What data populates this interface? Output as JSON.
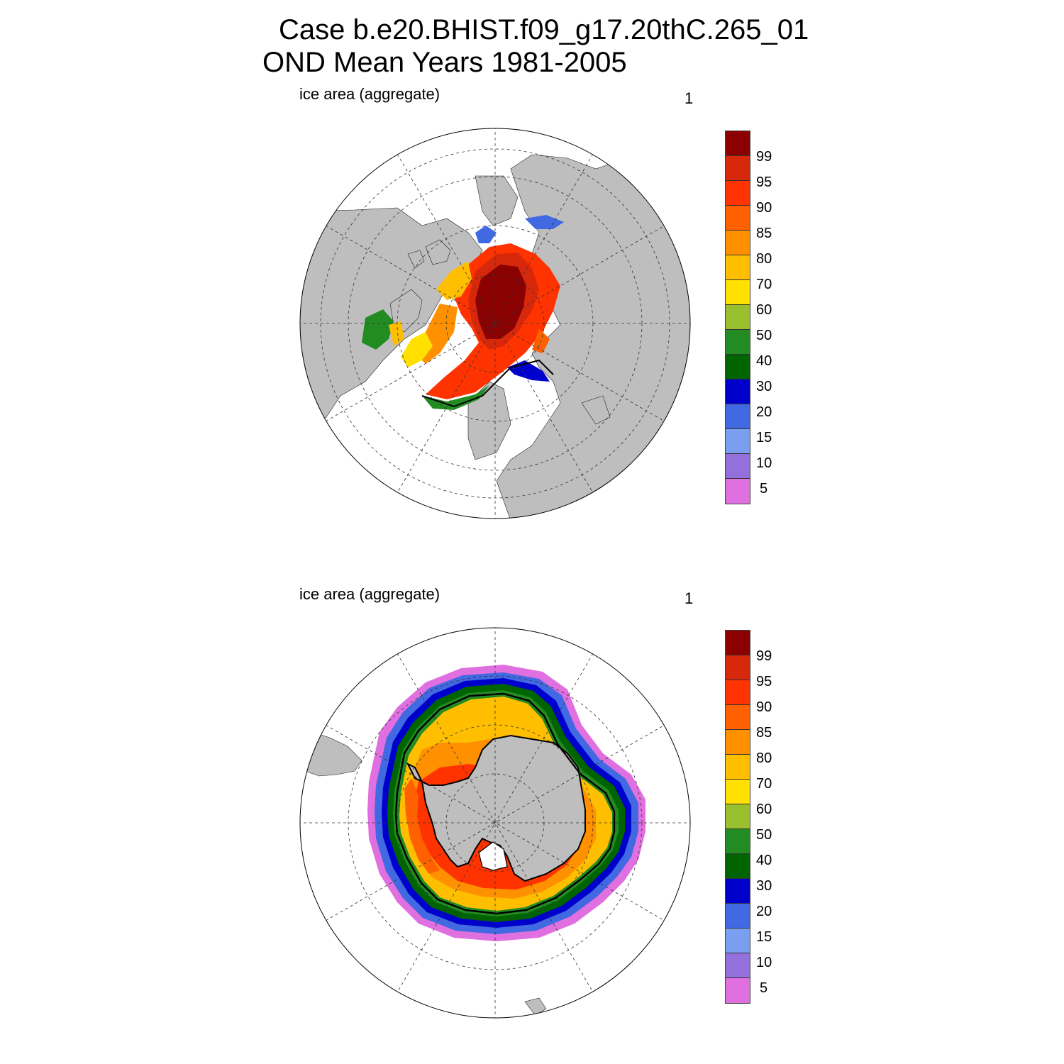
{
  "title": {
    "line1": "Case b.e20.BHIST.f09_g17.20thC.265_01",
    "line2": "OND Mean   Years 1981-2005"
  },
  "panels": [
    {
      "id": "north",
      "label": "ice area  (aggregate)",
      "number": "1"
    },
    {
      "id": "south",
      "label": "ice area  (aggregate)",
      "number": "1"
    }
  ],
  "colorbar": {
    "labels": [
      "99",
      "95",
      "90",
      "85",
      "80",
      "70",
      "60",
      "50",
      "40",
      "30",
      "20",
      "15",
      "10",
      "5"
    ],
    "colors": [
      "#8b0000",
      "#d8280c",
      "#ff3300",
      "#ff6000",
      "#ff9000",
      "#ffbf00",
      "#ffe000",
      "#9ac030",
      "#228b22",
      "#006400",
      "#0000cd",
      "#4169e1",
      "#7b9ff0",
      "#9370db",
      "#e070e0"
    ]
  },
  "map_colors": {
    "land": "#bebebe",
    "ocean": "#ffffff"
  }
}
